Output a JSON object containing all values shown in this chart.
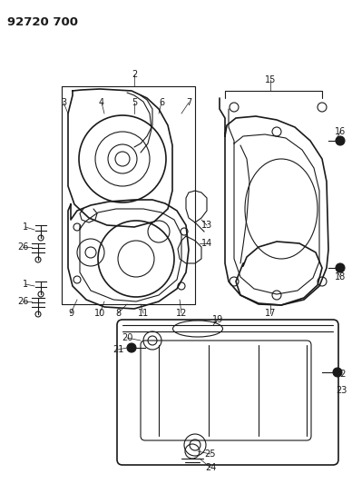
{
  "title": "92720 700",
  "bg": "#ffffff",
  "lc": "#1a1a1a",
  "figsize": [
    3.88,
    5.33
  ],
  "dpi": 100
}
